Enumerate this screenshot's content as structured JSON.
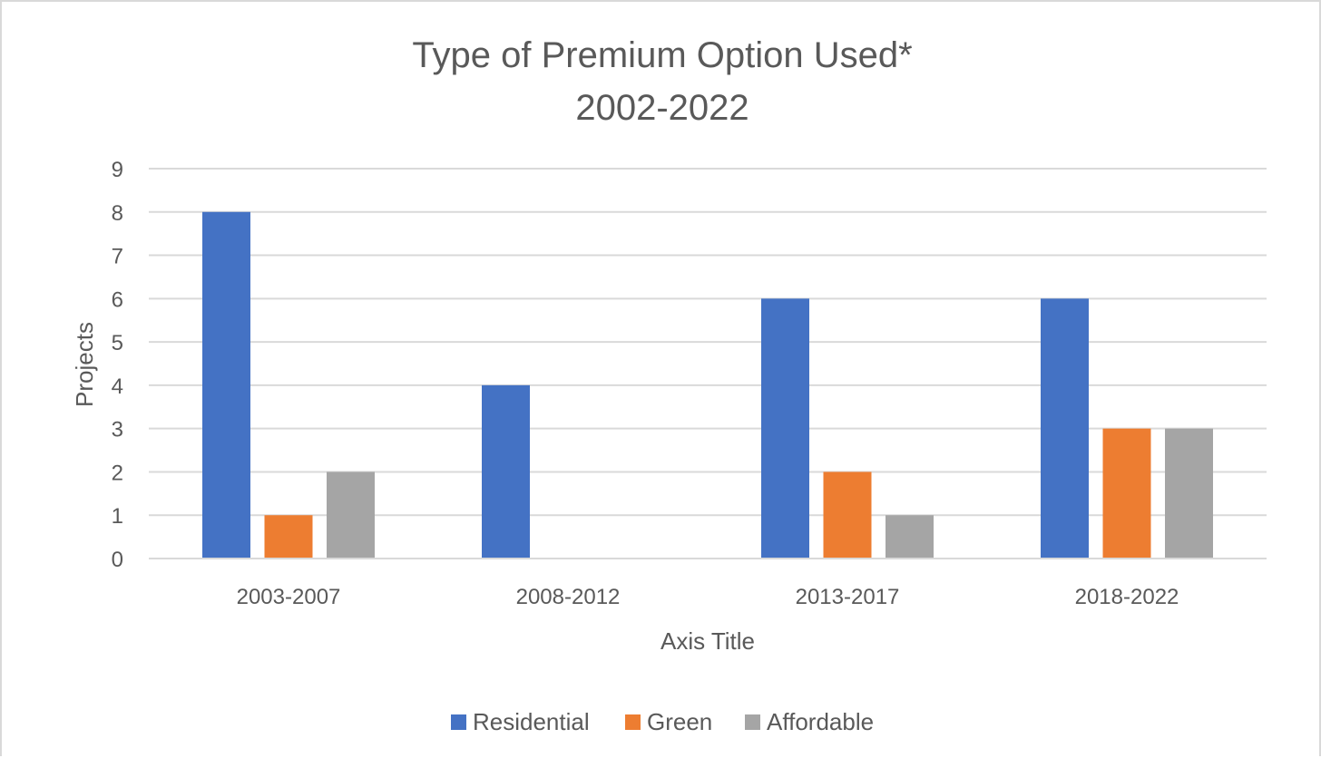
{
  "chart_data": {
    "type": "bar",
    "title_lines": [
      "Type of Premium Option Used*",
      "2002-2022"
    ],
    "xlabel": "Axis Title",
    "ylabel": "Projects",
    "categories": [
      "2003-2007",
      "2008-2012",
      "2013-2017",
      "2018-2022"
    ],
    "series": [
      {
        "name": "Residential",
        "color": "#4472c4",
        "values": [
          8,
          4,
          6,
          6
        ]
      },
      {
        "name": "Green",
        "color": "#ed7d31",
        "values": [
          1,
          0,
          2,
          3
        ]
      },
      {
        "name": "Affordable",
        "color": "#a5a5a5",
        "values": [
          2,
          0,
          1,
          3
        ]
      }
    ],
    "ylim": [
      0,
      9
    ],
    "yticks": [
      0,
      1,
      2,
      3,
      4,
      5,
      6,
      7,
      8,
      9
    ],
    "grid": true,
    "legend_position": "bottom"
  }
}
